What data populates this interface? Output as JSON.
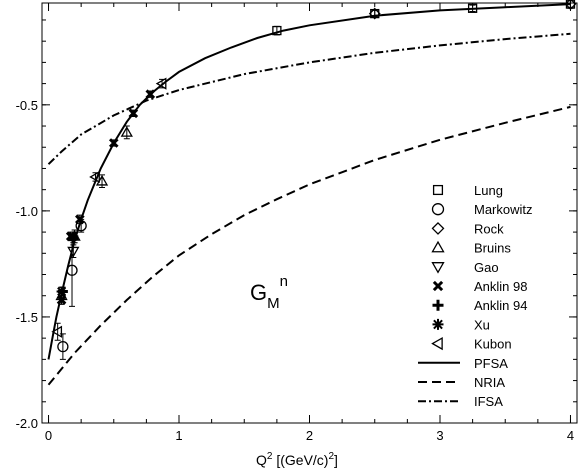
{
  "chart_data": {
    "type": "scatter",
    "title": "",
    "xlabel": {
      "base": "Q",
      "sup": "2",
      "rest": " [(GeV/c)",
      "sup2": "2",
      "close": "]"
    },
    "ylabel": "",
    "xlim": [
      -0.05,
      4.05
    ],
    "ylim": [
      -2.0,
      -0.02
    ],
    "xticks": [
      0,
      1,
      2,
      3,
      4
    ],
    "xtick_labels": [
      "0",
      "1",
      "2",
      "3",
      "4"
    ],
    "yticks": [
      -2.0,
      -1.5,
      -1.0,
      -0.5
    ],
    "ytick_labels": [
      "-2.0",
      "-1.5",
      "-1.0",
      "-0.5"
    ],
    "annotation": {
      "main": "G",
      "sub": "M",
      "sup": "n"
    },
    "legend_position": "right",
    "series": [
      {
        "name": "Lung",
        "kind": "points",
        "marker": "square",
        "points": [
          [
            1.75,
            -0.15,
            0.02
          ],
          [
            2.5,
            -0.07,
            0.015
          ],
          [
            3.25,
            -0.045,
            0.015
          ],
          [
            4.0,
            -0.025,
            0.02
          ]
        ]
      },
      {
        "name": "Markowitz",
        "kind": "points",
        "marker": "circle",
        "points": [
          [
            0.11,
            -1.64,
            0.06
          ],
          [
            0.18,
            -1.28,
            0.17
          ],
          [
            0.25,
            -1.07,
            0.03
          ]
        ]
      },
      {
        "name": "Rock",
        "kind": "points",
        "marker": "diamond",
        "points": [
          [
            2.5,
            -0.07,
            0.015
          ],
          [
            4.0,
            -0.025,
            0.015
          ]
        ]
      },
      {
        "name": "Bruins",
        "kind": "points",
        "marker": "triangle-up",
        "points": [
          [
            0.1,
            -1.4,
            0.04
          ],
          [
            0.2,
            -1.12,
            0.03
          ],
          [
            0.41,
            -0.86,
            0.03
          ],
          [
            0.6,
            -0.63,
            0.03
          ]
        ]
      },
      {
        "name": "Gao",
        "kind": "points",
        "marker": "triangle-down",
        "points": [
          [
            0.19,
            -1.19,
            0.03
          ]
        ]
      },
      {
        "name": "Anklin 98",
        "kind": "points",
        "marker": "x",
        "points": [
          [
            0.1,
            -1.42,
            0.02
          ],
          [
            0.17,
            -1.12,
            0.02
          ],
          [
            0.24,
            -1.04,
            0.02
          ],
          [
            0.5,
            -0.68,
            0.015
          ],
          [
            0.65,
            -0.54,
            0.015
          ],
          [
            0.78,
            -0.45,
            0.015
          ]
        ]
      },
      {
        "name": "Anklin 94",
        "kind": "points",
        "marker": "plus",
        "points": [
          [
            0.11,
            -1.38,
            0.02
          ],
          [
            0.19,
            -1.13,
            0.02
          ]
        ]
      },
      {
        "name": "Xu",
        "kind": "points",
        "marker": "star",
        "points": [
          [
            0.1,
            -1.38,
            0.02
          ],
          [
            0.19,
            -1.12,
            0.02
          ]
        ]
      },
      {
        "name": "Kubon",
        "kind": "points",
        "marker": "triangle-left",
        "points": [
          [
            0.07,
            -1.57,
            0.04
          ],
          [
            0.36,
            -0.84,
            0.02
          ],
          [
            0.87,
            -0.4,
            0.02
          ]
        ]
      },
      {
        "name": "PFSA",
        "kind": "line",
        "dash": "solid",
        "points": [
          [
            0.0,
            -1.7
          ],
          [
            0.03,
            -1.6
          ],
          [
            0.06,
            -1.5
          ],
          [
            0.1,
            -1.39
          ],
          [
            0.15,
            -1.26
          ],
          [
            0.2,
            -1.14
          ],
          [
            0.25,
            -1.04
          ],
          [
            0.3,
            -0.95
          ],
          [
            0.4,
            -0.8
          ],
          [
            0.5,
            -0.68
          ],
          [
            0.6,
            -0.58
          ],
          [
            0.7,
            -0.5
          ],
          [
            0.8,
            -0.44
          ],
          [
            0.9,
            -0.39
          ],
          [
            1.0,
            -0.345
          ],
          [
            1.2,
            -0.28
          ],
          [
            1.4,
            -0.23
          ],
          [
            1.6,
            -0.185
          ],
          [
            1.8,
            -0.15
          ],
          [
            2.0,
            -0.125
          ],
          [
            2.5,
            -0.08
          ],
          [
            3.0,
            -0.055
          ],
          [
            3.5,
            -0.04
          ],
          [
            4.0,
            -0.025
          ]
        ]
      },
      {
        "name": "NRIA",
        "kind": "line",
        "dash": "dashed",
        "points": [
          [
            0.0,
            -1.82
          ],
          [
            0.2,
            -1.67
          ],
          [
            0.4,
            -1.54
          ],
          [
            0.6,
            -1.42
          ],
          [
            0.8,
            -1.31
          ],
          [
            1.0,
            -1.21
          ],
          [
            1.25,
            -1.11
          ],
          [
            1.5,
            -1.02
          ],
          [
            1.75,
            -0.945
          ],
          [
            2.0,
            -0.875
          ],
          [
            2.5,
            -0.76
          ],
          [
            3.0,
            -0.665
          ],
          [
            3.5,
            -0.585
          ],
          [
            4.0,
            -0.51
          ]
        ]
      },
      {
        "name": "IFSA",
        "kind": "line",
        "dash": "dashdot",
        "points": [
          [
            0.0,
            -0.78
          ],
          [
            0.1,
            -0.72
          ],
          [
            0.25,
            -0.64
          ],
          [
            0.5,
            -0.55
          ],
          [
            0.75,
            -0.48
          ],
          [
            1.0,
            -0.43
          ],
          [
            1.5,
            -0.355
          ],
          [
            2.0,
            -0.3
          ],
          [
            2.5,
            -0.255
          ],
          [
            3.0,
            -0.22
          ],
          [
            3.5,
            -0.19
          ],
          [
            4.0,
            -0.165
          ]
        ]
      }
    ]
  }
}
